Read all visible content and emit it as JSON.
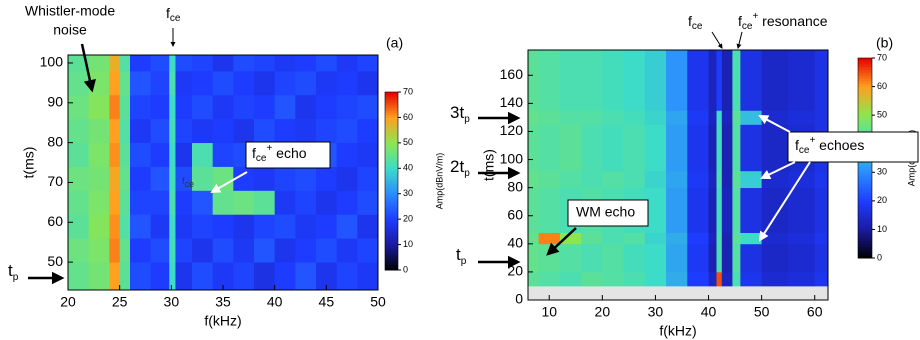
{
  "chart_data": [
    {
      "type": "heatmap",
      "panel_label": "(a)",
      "xlabel": "f(kHz)",
      "ylabel": "t(ms)",
      "xlim": [
        20,
        50
      ],
      "xticks": [
        20,
        25,
        30,
        35,
        40,
        45,
        50
      ],
      "ylim": [
        43,
        102
      ],
      "yticks": [
        50,
        60,
        70,
        80,
        90,
        100
      ],
      "x_edges": [
        20,
        22,
        24,
        25,
        26,
        28,
        29.8,
        30.4,
        32,
        34,
        36,
        38,
        40,
        42,
        44,
        46,
        48,
        50
      ],
      "y_edges": [
        43,
        50,
        56,
        62,
        68,
        74,
        80,
        86,
        92,
        98,
        102
      ],
      "z": [
        [
          45,
          47,
          60,
          44,
          22,
          20,
          40,
          18,
          22,
          19,
          21,
          17,
          20,
          23,
          18,
          21,
          19
        ],
        [
          46,
          48,
          62,
          45,
          20,
          22,
          41,
          21,
          18,
          22,
          19,
          23,
          18,
          20,
          22,
          19,
          21
        ],
        [
          44,
          49,
          61,
          43,
          23,
          19,
          40,
          19,
          21,
          20,
          18,
          21,
          22,
          19,
          20,
          23,
          18
        ],
        [
          45,
          48,
          60,
          44,
          21,
          21,
          42,
          20,
          23,
          45,
          46,
          44,
          19,
          21,
          18,
          20,
          22
        ],
        [
          46,
          47,
          59,
          45,
          20,
          23,
          41,
          22,
          44,
          46,
          20,
          19,
          21,
          22,
          20,
          18,
          21
        ],
        [
          44,
          48,
          61,
          44,
          22,
          20,
          40,
          18,
          42,
          21,
          22,
          20,
          18,
          21,
          23,
          20,
          19
        ],
        [
          45,
          47,
          60,
          43,
          19,
          22,
          41,
          21,
          19,
          20,
          18,
          22,
          20,
          19,
          21,
          22,
          20
        ],
        [
          46,
          49,
          62,
          44,
          21,
          20,
          40,
          20,
          22,
          19,
          21,
          20,
          23,
          18,
          20,
          21,
          22
        ],
        [
          45,
          48,
          60,
          45,
          23,
          21,
          42,
          19,
          20,
          22,
          20,
          18,
          21,
          22,
          19,
          20,
          18
        ],
        [
          44,
          47,
          58,
          43,
          20,
          22,
          40,
          22,
          21,
          18,
          22,
          21,
          19,
          20,
          22,
          19,
          21
        ]
      ],
      "colormap": [
        "#000000",
        "#1a1aa0",
        "#1e3cff",
        "#2a8cff",
        "#3cdcc8",
        "#8ce650",
        "#ffa020",
        "#e60000"
      ],
      "colorbar": {
        "label": "Amp(dBnV/m)",
        "zlim": [
          0,
          70
        ],
        "ticks": [
          0,
          10,
          20,
          30,
          40,
          50,
          60,
          70
        ]
      },
      "annotations": {
        "noise": [
          "Whistler-mode",
          "noise"
        ],
        "fce": [
          "f",
          "ce"
        ],
        "echo": [
          "f",
          "ce",
          "+",
          " echo"
        ],
        "faint": [
          "f",
          "ce"
        ],
        "tp": [
          "t",
          "p"
        ]
      }
    },
    {
      "type": "heatmap",
      "panel_label": "(b)",
      "xlabel": "f(kHz)",
      "ylabel": "t(ms)",
      "xlim": [
        6,
        62.5
      ],
      "xticks": [
        10,
        20,
        30,
        40,
        50,
        60
      ],
      "ylim": [
        0,
        178
      ],
      "yticks": [
        0,
        20,
        40,
        60,
        80,
        100,
        120,
        140,
        160
      ],
      "x_edges": [
        6,
        8,
        12,
        16,
        20,
        24,
        28,
        32,
        36,
        40,
        41.5,
        42.5,
        44.5,
        46,
        50,
        55,
        60,
        62.5
      ],
      "y_edges": [
        0,
        10,
        20,
        40,
        48,
        80,
        92,
        125,
        135,
        178
      ],
      "z": [
        [
          null,
          null,
          null,
          null,
          null,
          null,
          null,
          null,
          null,
          null,
          null,
          null,
          null,
          null,
          null,
          null,
          null
        ],
        [
          44,
          43,
          42,
          44,
          43,
          42,
          40,
          34,
          20,
          14,
          65,
          13,
          42,
          18,
          15,
          16,
          18
        ],
        [
          45,
          44,
          43,
          42,
          43,
          41,
          40,
          33,
          19,
          12,
          42,
          12,
          43,
          17,
          14,
          15,
          17
        ],
        [
          45,
          62,
          50,
          44,
          42,
          43,
          39,
          34,
          20,
          13,
          42,
          12,
          44,
          40,
          15,
          16,
          18
        ],
        [
          44,
          43,
          42,
          43,
          42,
          41,
          40,
          32,
          18,
          12,
          41,
          13,
          43,
          17,
          14,
          15,
          17
        ],
        [
          45,
          44,
          43,
          42,
          43,
          42,
          39,
          33,
          19,
          13,
          42,
          12,
          44,
          38,
          15,
          16,
          18
        ],
        [
          44,
          43,
          44,
          42,
          41,
          42,
          40,
          32,
          18,
          12,
          41,
          12,
          43,
          17,
          14,
          15,
          17
        ],
        [
          45,
          44,
          43,
          43,
          42,
          41,
          39,
          33,
          19,
          13,
          40,
          13,
          44,
          36,
          15,
          16,
          17
        ],
        [
          44,
          43,
          42,
          42,
          41,
          40,
          38,
          31,
          18,
          13,
          20,
          12,
          42,
          17,
          14,
          15,
          17
        ]
      ],
      "colormap": [
        "#000000",
        "#1a1aa0",
        "#1e3cff",
        "#2a8cff",
        "#3cdcc8",
        "#8ce650",
        "#ffa020",
        "#e60000"
      ],
      "colorbar": {
        "label": "Amp(dBnV/m)",
        "zlim": [
          0,
          70
        ],
        "ticks": [
          0,
          10,
          20,
          30,
          40,
          50,
          60,
          70
        ]
      },
      "annotations": {
        "fce": [
          "f",
          "ce"
        ],
        "resonance": [
          "f",
          "ce",
          "+",
          " resonance"
        ],
        "t3": [
          "3t",
          "p"
        ],
        "t2": [
          "2t",
          "p"
        ],
        "tp": [
          "t",
          "p"
        ],
        "wm": "WM echo",
        "echoes": [
          "f",
          "ce",
          "+",
          " echoes"
        ]
      }
    }
  ]
}
